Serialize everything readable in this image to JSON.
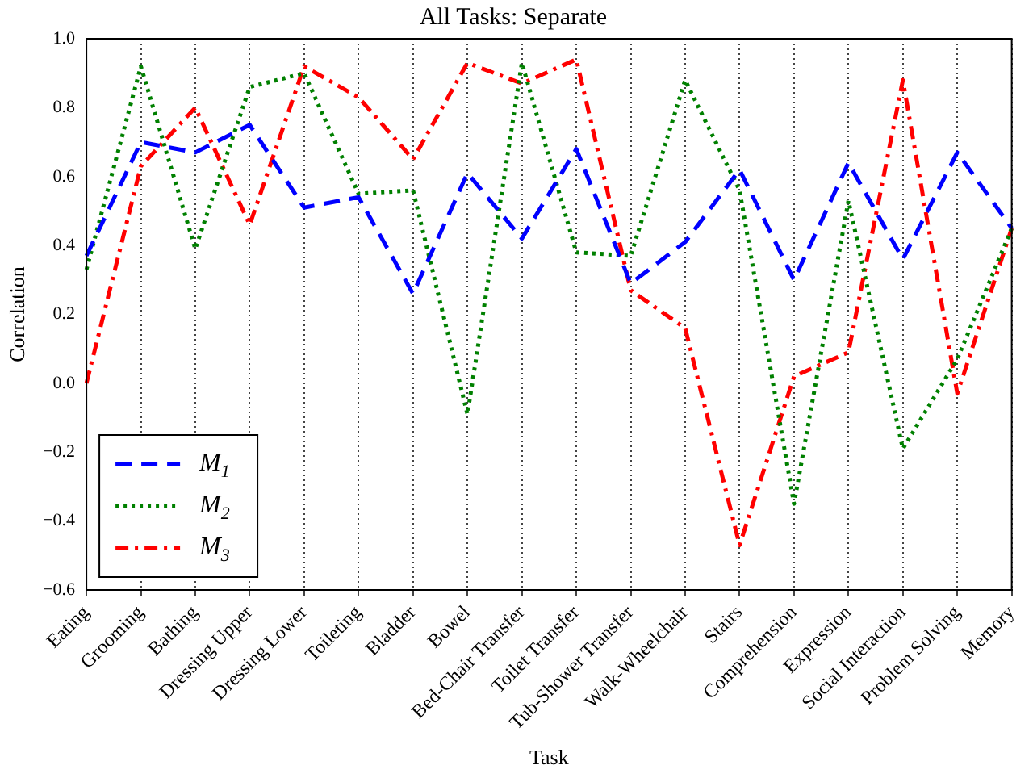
{
  "chart_data": {
    "type": "line",
    "title": "All Tasks: Separate",
    "xlabel": "Task",
    "ylabel": "Correlation",
    "categories": [
      "Eating",
      "Grooming",
      "Bathing",
      "Dressing Upper",
      "Dressing Lower",
      "Toileting",
      "Bladder",
      "Bowel",
      "Bed-Chair Transfer",
      "Toilet Transfer",
      "Tub-Shower Transfer",
      "Walk-Wheelchair",
      "Stairs",
      "Comprehension",
      "Expression",
      "Social Interaction",
      "Problem Solving",
      "Memory"
    ],
    "series": [
      {
        "name": "M$_{1}$",
        "color": "#0000ff",
        "line_style": "dashed",
        "values": [
          0.37,
          0.7,
          0.67,
          0.75,
          0.51,
          0.54,
          0.26,
          0.61,
          0.42,
          0.68,
          0.29,
          0.41,
          0.62,
          0.3,
          0.64,
          0.36,
          0.67,
          0.45
        ]
      },
      {
        "name": "M$_{2}$",
        "color": "#008000",
        "line_style": "dotted",
        "values": [
          0.33,
          0.92,
          0.39,
          0.86,
          0.9,
          0.55,
          0.56,
          -0.09,
          0.93,
          0.38,
          0.37,
          0.88,
          0.56,
          -0.35,
          0.53,
          -0.19,
          0.07,
          0.45
        ]
      },
      {
        "name": "M$_{3}$",
        "color": "#ff0000",
        "line_style": "dashdot",
        "values": [
          0.0,
          0.63,
          0.8,
          0.46,
          0.92,
          0.83,
          0.65,
          0.93,
          0.87,
          0.94,
          0.27,
          0.16,
          -0.47,
          0.02,
          0.09,
          0.88,
          -0.03,
          0.45
        ]
      }
    ],
    "ylim": [
      -0.6,
      1.0
    ],
    "yticks": [
      {
        "value": -0.6,
        "label": "−0.6"
      },
      {
        "value": -0.4,
        "label": "−0.4"
      },
      {
        "value": -0.2,
        "label": "−0.2"
      },
      {
        "value": 0,
        "label": "0.0"
      },
      {
        "value": 0.2,
        "label": "0.2"
      },
      {
        "value": 0.4,
        "label": "0.4"
      },
      {
        "value": 0.6,
        "label": "0.6"
      },
      {
        "value": 0.8,
        "label": "0.8"
      },
      {
        "value": 1,
        "label": "1.0"
      }
    ],
    "grid": "x",
    "legend": "bottom left",
    "marker": "none"
  }
}
